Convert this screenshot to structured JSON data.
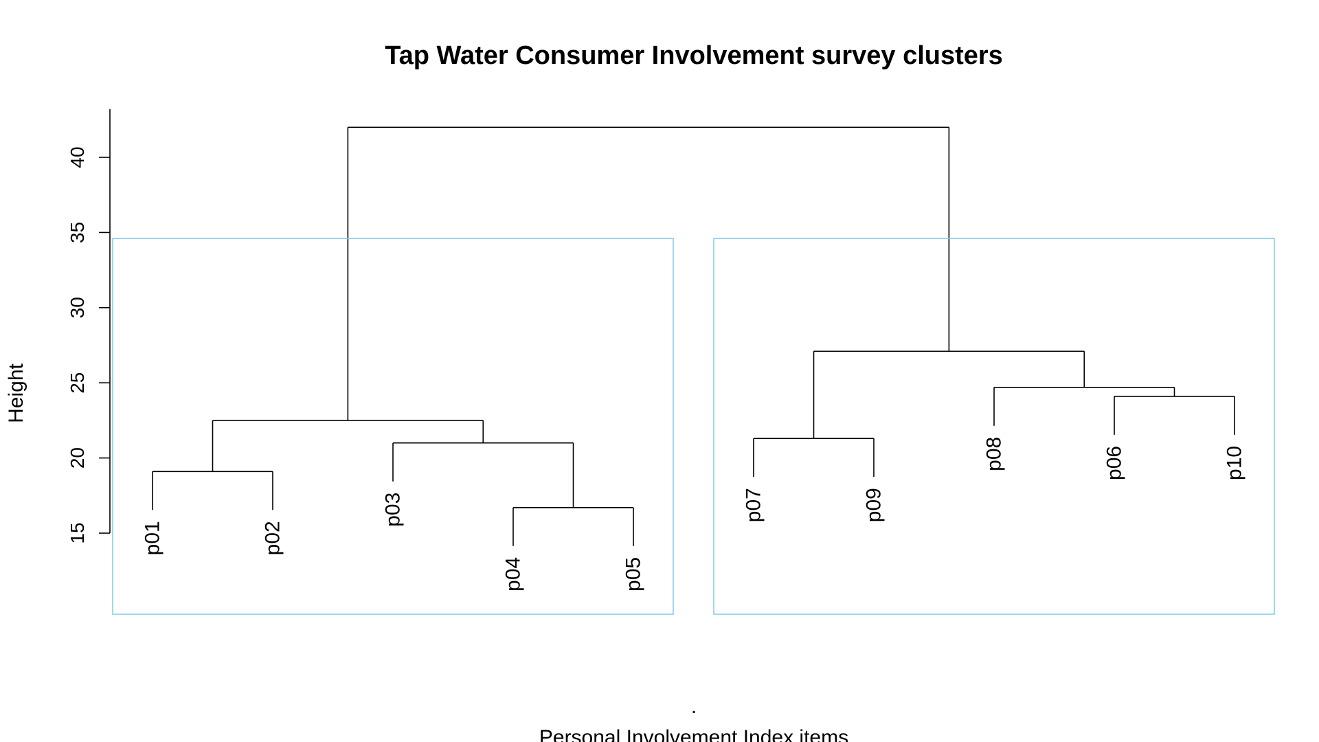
{
  "chart_data": {
    "type": "dendrogram",
    "title": "Tap Water Consumer Involvement survey clusters",
    "xlabel": "Personal Involvement Index items",
    "xsub": ".",
    "ylabel": "Height",
    "ylim": [
      15,
      42
    ],
    "yticks": [
      "15",
      "20",
      "25",
      "30",
      "35",
      "40"
    ],
    "leaves": [
      "p01",
      "p02",
      "p03",
      "p04",
      "p05",
      "p07",
      "p09",
      "p08",
      "p06",
      "p10"
    ],
    "merges": [
      {
        "left": "p04",
        "right": "p05",
        "height": 16.7
      },
      {
        "left": "p01",
        "right": "p02",
        "height": 19.1
      },
      {
        "left": "p03",
        "right": "(p04,p05)",
        "height": 21.0
      },
      {
        "left": "p07",
        "right": "p09",
        "height": 21.3
      },
      {
        "left": "(p01,p02)",
        "right": "(p03,(p04,p05))",
        "height": 22.5
      },
      {
        "left": "p06",
        "right": "p10",
        "height": 24.1
      },
      {
        "left": "p08",
        "right": "(p06,p10)",
        "height": 24.7
      },
      {
        "left": "(p07,p09)",
        "right": "(p08,(p06,p10))",
        "height": 27.1
      },
      {
        "left": "left cluster",
        "right": "right cluster",
        "height": 42.0
      }
    ],
    "cluster_boxes": {
      "k": 2,
      "color": "#87CEEB",
      "groups": [
        [
          "p01",
          "p02",
          "p03",
          "p04",
          "p05"
        ],
        [
          "p07",
          "p09",
          "p08",
          "p06",
          "p10"
        ]
      ]
    }
  }
}
